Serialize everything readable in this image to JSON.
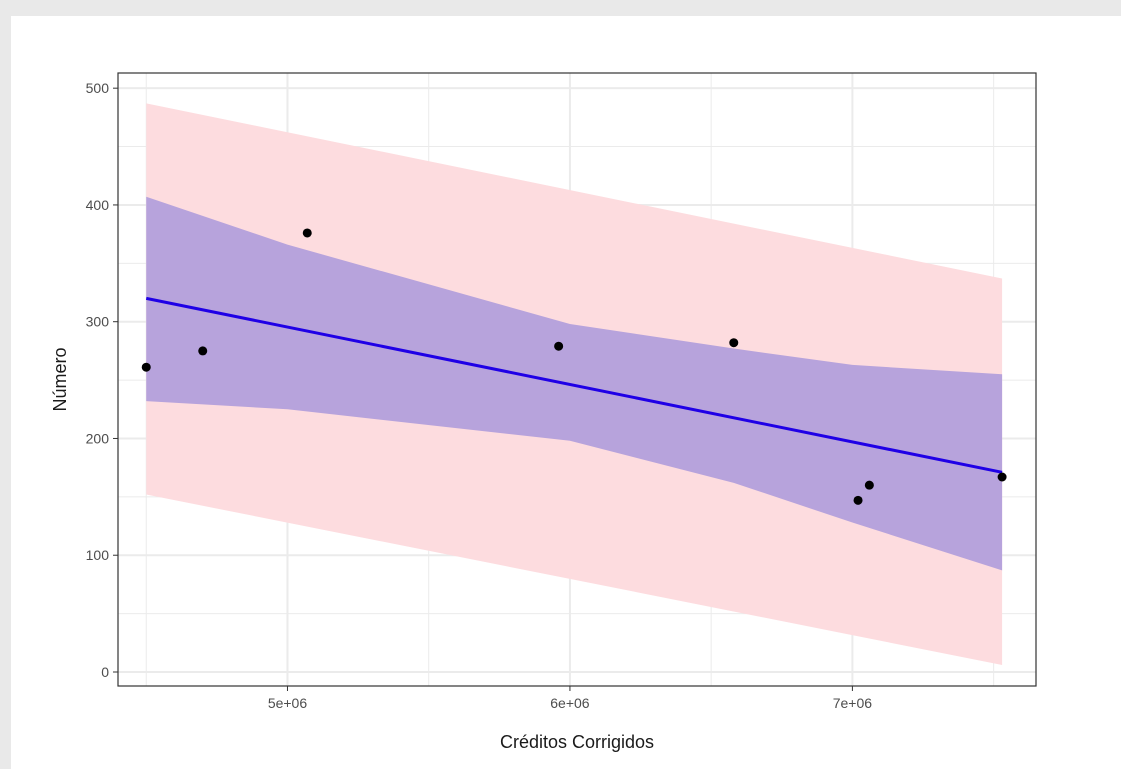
{
  "chart_data": {
    "type": "scatter",
    "title": "",
    "xlabel": "Créditos Corrigidos",
    "ylabel": "Número",
    "xlim": [
      4400000,
      7650000
    ],
    "ylim": [
      -12,
      513
    ],
    "x_ticks": [
      {
        "value": 5000000,
        "label": "5e+06"
      },
      {
        "value": 6000000,
        "label": "6e+06"
      },
      {
        "value": 7000000,
        "label": "7e+06"
      }
    ],
    "y_ticks": [
      {
        "value": 0,
        "label": "0"
      },
      {
        "value": 100,
        "label": "100"
      },
      {
        "value": 200,
        "label": "200"
      },
      {
        "value": 300,
        "label": "300"
      },
      {
        "value": 400,
        "label": "400"
      },
      {
        "value": 500,
        "label": "500"
      }
    ],
    "grid": true,
    "points": [
      {
        "x": 4500000,
        "y": 261
      },
      {
        "x": 4700000,
        "y": 275
      },
      {
        "x": 5070000,
        "y": 376
      },
      {
        "x": 5960000,
        "y": 279
      },
      {
        "x": 6580000,
        "y": 282
      },
      {
        "x": 7020000,
        "y": 147
      },
      {
        "x": 7060000,
        "y": 160
      },
      {
        "x": 7530000,
        "y": 167
      }
    ],
    "fit_line": [
      {
        "x": 4500000,
        "y": 320
      },
      {
        "x": 7530000,
        "y": 171
      }
    ],
    "confidence_band": [
      {
        "x": 4500000,
        "lower": 232,
        "upper": 407
      },
      {
        "x": 5000000,
        "lower": 225,
        "upper": 366
      },
      {
        "x": 6000000,
        "lower": 198,
        "upper": 298
      },
      {
        "x": 6580000,
        "lower": 162,
        "upper": 277
      },
      {
        "x": 7000000,
        "lower": 128,
        "upper": 263
      },
      {
        "x": 7530000,
        "lower": 87,
        "upper": 255
      }
    ],
    "prediction_band": [
      {
        "x": 4500000,
        "lower": 152,
        "upper": 487
      },
      {
        "x": 7530000,
        "lower": 6,
        "upper": 337
      }
    ],
    "colors": {
      "fit_line": "#1f00e6",
      "confidence_band": "#b7a3dc",
      "prediction_band": "#fddcdf",
      "points": "#000000",
      "grid": "#ebebeb",
      "panel_border": "#333333",
      "panel_background": "#ffffff"
    }
  }
}
